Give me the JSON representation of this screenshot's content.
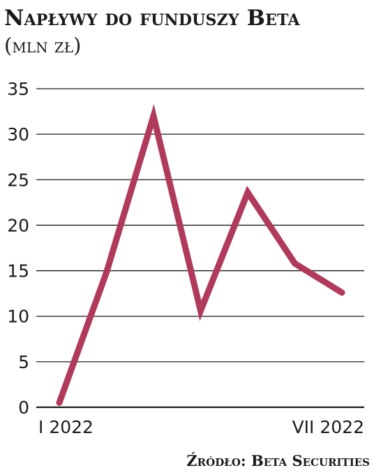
{
  "chart_data": {
    "type": "line",
    "title": "Napływy do funduszy Beta",
    "subtitle": "(mln zł)",
    "source": "Źródło: Beta Securities",
    "x_labels": [
      "I 2022",
      "VII 2022"
    ],
    "x": [
      1,
      2,
      3,
      4,
      5,
      6,
      7
    ],
    "series": [
      {
        "values": [
          0.5,
          14.8,
          32,
          10.6,
          23.6,
          15.8,
          12.6
        ],
        "color": "#b03a5b"
      }
    ],
    "y_ticks": [
      "0",
      "5",
      "10",
      "15",
      "20",
      "25",
      "30",
      "35"
    ],
    "ylim": [
      0,
      35
    ],
    "grid": true,
    "legend": "none"
  }
}
